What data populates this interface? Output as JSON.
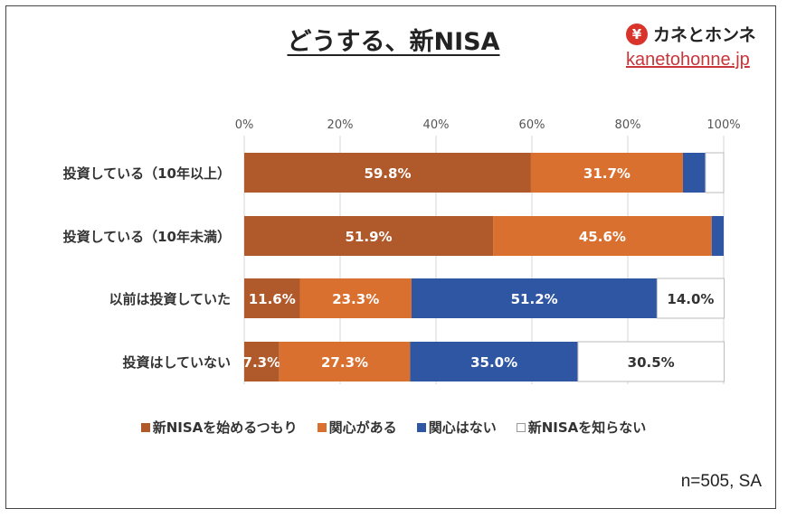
{
  "title": "どうする、新NISA",
  "logo": {
    "name": "カネとホンネ",
    "symbol": "¥",
    "url": "kanetohonne.jp"
  },
  "note": "n=505, SA",
  "colors": {
    "start": "#b0592a",
    "interested": "#d9702f",
    "not_interested": "#2f56a3",
    "unknown": "#ffffff"
  },
  "chart_data": {
    "type": "bar",
    "orientation": "horizontal-stacked-100",
    "title": "どうする、新NISA",
    "xlim": [
      0,
      100
    ],
    "x_ticks": [
      "0%",
      "20%",
      "40%",
      "60%",
      "80%",
      "100%"
    ],
    "grid": true,
    "legend_position": "bottom",
    "categories": [
      "投資している（10年以上）",
      "投資している（10年未満）",
      "以前は投資していた",
      "投資はしていない"
    ],
    "series": [
      {
        "name": "新NISAを始めるつもり",
        "values": [
          59.8,
          51.9,
          11.6,
          7.3
        ],
        "labels": [
          "59.8%",
          "51.9%",
          "11.6%",
          "7.3%"
        ]
      },
      {
        "name": "関心がある",
        "values": [
          31.7,
          45.6,
          23.3,
          27.3
        ],
        "labels": [
          "31.7%",
          "45.6%",
          "23.3%",
          "27.3%"
        ]
      },
      {
        "name": "関心はない",
        "values": [
          4.7,
          2.5,
          51.2,
          35.0
        ],
        "labels": [
          "",
          "",
          "51.2%",
          "35.0%"
        ]
      },
      {
        "name": "新NISAを知らない",
        "values": [
          3.8,
          0,
          14.0,
          30.5
        ],
        "labels": [
          "",
          "",
          "14.0%",
          "30.5%"
        ]
      }
    ]
  }
}
